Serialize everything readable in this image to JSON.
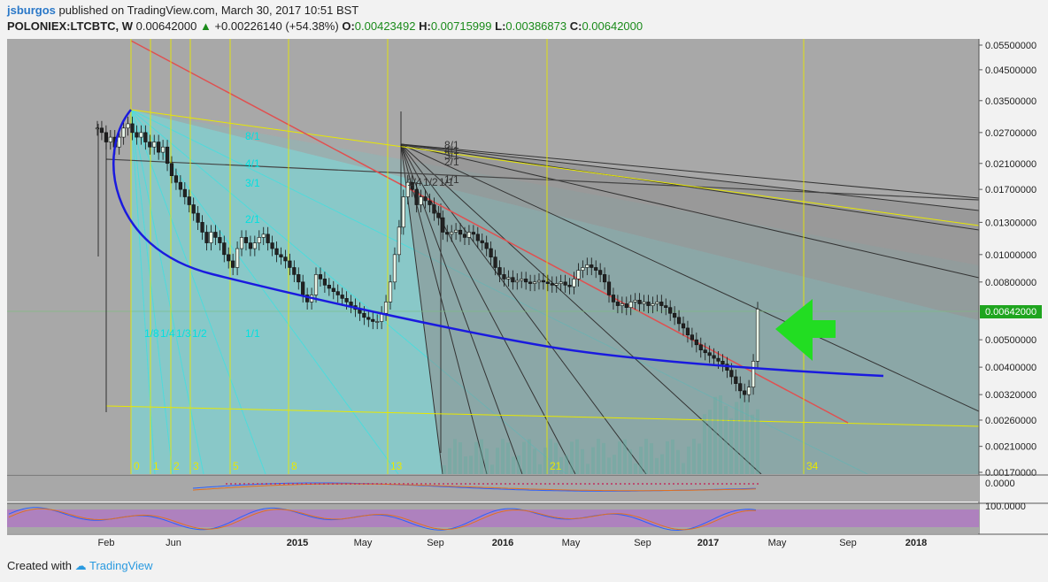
{
  "header": {
    "author": "jsburgos",
    "published": "published on TradingView.com, March 30, 2017 10:51 BST",
    "symbol": "POLONIEX:LTCBTC, W",
    "last": "0.00642000",
    "change": "+0.00226140 (+54.38%)",
    "o_label": "O:",
    "o_value": "0.00423492",
    "h_label": "H:",
    "h_value": "0.00715999",
    "l_label": "L:",
    "l_value": "0.00386873",
    "c_label": "C:",
    "c_value": "0.00642000"
  },
  "footer": {
    "created_with": "Created with",
    "brand": "TradingView"
  },
  "colors": {
    "bg": "#a8a8a8",
    "cyan_fill": "#7fd3d3",
    "up": "#1a8a1a",
    "price_badge": "#1fa51f",
    "arrow": "#22dd22",
    "arc": "#1a1adf",
    "red_line": "#e05050",
    "yellow": "#e8e800"
  },
  "chart_data": {
    "type": "candlestick",
    "ylim": [
      0.0017,
      0.055
    ],
    "y_scale": "log",
    "y_ticks": [
      "0.05500000",
      "0.04500000",
      "0.03500000",
      "0.02700000",
      "0.02100000",
      "0.01700000",
      "0.01300000",
      "0.01000000",
      "0.00800000",
      "0.00642000",
      "0.00500000",
      "0.00400000",
      "0.00320000",
      "0.00260000",
      "0.00210000",
      "0.00170000"
    ],
    "current_price": "0.00642000",
    "x_ticks": [
      "Feb",
      "Jun",
      "2015",
      "May",
      "Sep",
      "2016",
      "May",
      "Sep",
      "2017",
      "May",
      "Sep",
      "2018"
    ],
    "fib_time_zones": [
      "0",
      "1",
      "2",
      "3",
      "5",
      "8",
      "13",
      "21",
      "34"
    ],
    "fan_labels": [
      "8/1",
      "4/1",
      "3/1",
      "2/1",
      "1/1"
    ],
    "fan_labels_2": [
      "1/4",
      "1/2",
      "1/1"
    ],
    "cyan_labels": [
      "8/1",
      "4/1",
      "3/1",
      "2/1",
      "1/1"
    ],
    "cyan_labels_left": [
      "1/8",
      "1/4",
      "1/3",
      "1/2"
    ],
    "macd_tick": "0.0000",
    "stoch_tick": "100.0000",
    "closes": [
      0.028,
      0.027,
      0.025,
      0.026,
      0.024,
      0.026,
      0.028,
      0.029,
      0.027,
      0.026,
      0.027,
      0.025,
      0.024,
      0.025,
      0.023,
      0.024,
      0.021,
      0.019,
      0.018,
      0.017,
      0.016,
      0.015,
      0.014,
      0.013,
      0.012,
      0.011,
      0.012,
      0.0115,
      0.011,
      0.01,
      0.0095,
      0.009,
      0.0105,
      0.0115,
      0.011,
      0.0105,
      0.011,
      0.0115,
      0.0118,
      0.011,
      0.0105,
      0.01,
      0.0098,
      0.0095,
      0.009,
      0.0085,
      0.008,
      0.0072,
      0.0068,
      0.0072,
      0.0085,
      0.0082,
      0.0078,
      0.0076,
      0.0074,
      0.0072,
      0.007,
      0.0068,
      0.0066,
      0.0064,
      0.0062,
      0.006,
      0.0059,
      0.0058,
      0.0058,
      0.0062,
      0.0068,
      0.008,
      0.01,
      0.0125,
      0.016,
      0.018,
      0.017,
      0.015,
      0.016,
      0.0155,
      0.015,
      0.014,
      0.0135,
      0.012,
      0.0118,
      0.012,
      0.0122,
      0.0118,
      0.0115,
      0.012,
      0.0118,
      0.0112,
      0.011,
      0.0105,
      0.0098,
      0.009,
      0.0085,
      0.0082,
      0.0083,
      0.008,
      0.0081,
      0.0082,
      0.008,
      0.0079,
      0.008,
      0.0081,
      0.008,
      0.0079,
      0.0078,
      0.0079,
      0.008,
      0.0078,
      0.0077,
      0.0082,
      0.0088,
      0.009,
      0.0092,
      0.009,
      0.0088,
      0.0085,
      0.008,
      0.0072,
      0.0068,
      0.0066,
      0.0067,
      0.0065,
      0.0068,
      0.0069,
      0.0067,
      0.0068,
      0.0066,
      0.0067,
      0.0068,
      0.0066,
      0.0065,
      0.0062,
      0.006,
      0.0057,
      0.0055,
      0.0052,
      0.005,
      0.0048,
      0.0046,
      0.0045,
      0.0044,
      0.0043,
      0.0042,
      0.0041,
      0.0039,
      0.0037,
      0.0035,
      0.0033,
      0.0032,
      0.0034,
      0.0042,
      0.00642
    ]
  }
}
